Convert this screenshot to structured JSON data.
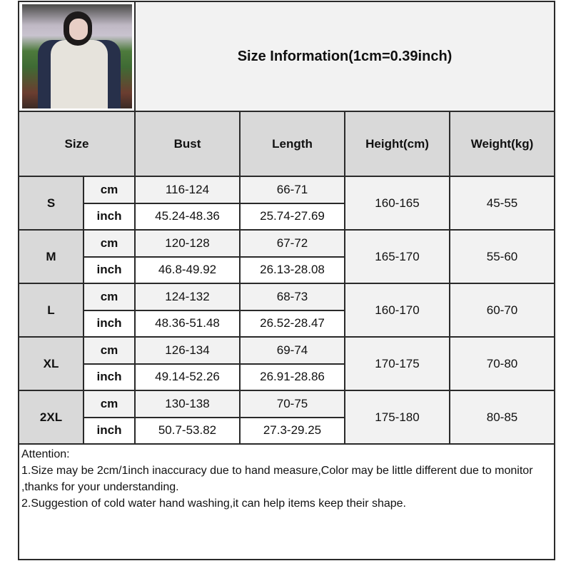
{
  "title": "Size Information(1cm=0.39inch)",
  "photo": {
    "alt": "model wearing hoodie"
  },
  "colors": {
    "header_bg": "#d9d9d9",
    "cm_row_bg": "#f2f2f2",
    "border": "#2a2a2a"
  },
  "headers": {
    "size": "Size",
    "bust": "Bust",
    "length": "Length",
    "height": "Height(cm)",
    "weight": "Weight(kg)"
  },
  "units": {
    "cm": "cm",
    "inch": "inch"
  },
  "rows": [
    {
      "size": "S",
      "bust_cm": "116-124",
      "length_cm": "66-71",
      "bust_inch": "45.24-48.36",
      "length_inch": "25.74-27.69",
      "height": "160-165",
      "weight": "45-55"
    },
    {
      "size": "M",
      "bust_cm": "120-128",
      "length_cm": "67-72",
      "bust_inch": "46.8-49.92",
      "length_inch": "26.13-28.08",
      "height": "165-170",
      "weight": "55-60"
    },
    {
      "size": "L",
      "bust_cm": "124-132",
      "length_cm": "68-73",
      "bust_inch": "48.36-51.48",
      "length_inch": "26.52-28.47",
      "height": "160-170",
      "weight": "60-70"
    },
    {
      "size": "XL",
      "bust_cm": "126-134",
      "length_cm": "69-74",
      "bust_inch": "49.14-52.26",
      "length_inch": "26.91-28.86",
      "height": "170-175",
      "weight": "70-80"
    },
    {
      "size": "2XL",
      "bust_cm": "130-138",
      "length_cm": "70-75",
      "bust_inch": "50.7-53.82",
      "length_inch": "27.3-29.25",
      "height": "175-180",
      "weight": "80-85"
    }
  ],
  "attention": {
    "heading": "Attention:",
    "lines": [
      "1.Size may be 2cm/1inch inaccuracy due to hand measure,Color may be little different due to monitor ,thanks for your understanding.",
      "2.Suggestion of cold water hand washing,it can help items keep their shape."
    ]
  }
}
